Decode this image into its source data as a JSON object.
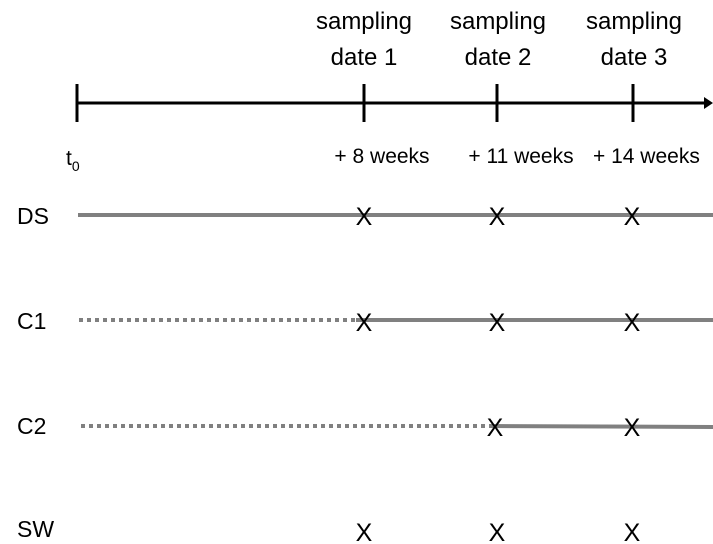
{
  "timeline": {
    "start_label": "t",
    "start_subscript": "0",
    "sampling_dates": [
      {
        "line1": "sampling",
        "line2": "date 1",
        "offset": "+ 8 weeks"
      },
      {
        "line1": "sampling",
        "line2": "date 2",
        "offset": "+ 11 weeks"
      },
      {
        "line1": "sampling",
        "line2": "date 3",
        "offset": "+ 14 weeks"
      }
    ]
  },
  "rows": [
    {
      "label": "DS",
      "marks": [
        "X",
        "X",
        "X"
      ],
      "dotted_until": null
    },
    {
      "label": "C1",
      "marks": [
        "X",
        "X",
        "X"
      ],
      "dotted_until": 1
    },
    {
      "label": "C2",
      "marks": [
        "X",
        "X"
      ],
      "dotted_until": 2
    },
    {
      "label": "SW",
      "marks": [
        "X",
        "X",
        "X"
      ],
      "dotted_until": null
    }
  ],
  "colors": {
    "axis": "#000000",
    "row_line": "#808080",
    "text": "#000000"
  }
}
